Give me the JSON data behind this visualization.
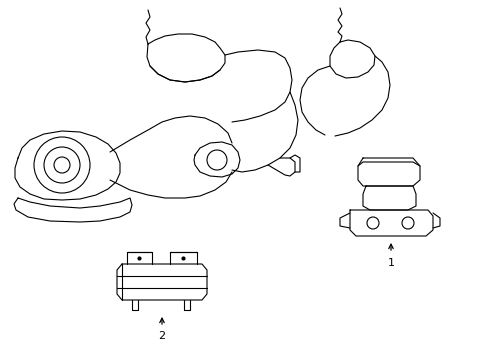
{
  "background_color": "#ffffff",
  "line_color": "#000000",
  "line_width": 0.8,
  "fig_width": 4.89,
  "fig_height": 3.6,
  "dpi": 100,
  "label_1": "1",
  "label_2": "2",
  "label_fontsize": 8
}
